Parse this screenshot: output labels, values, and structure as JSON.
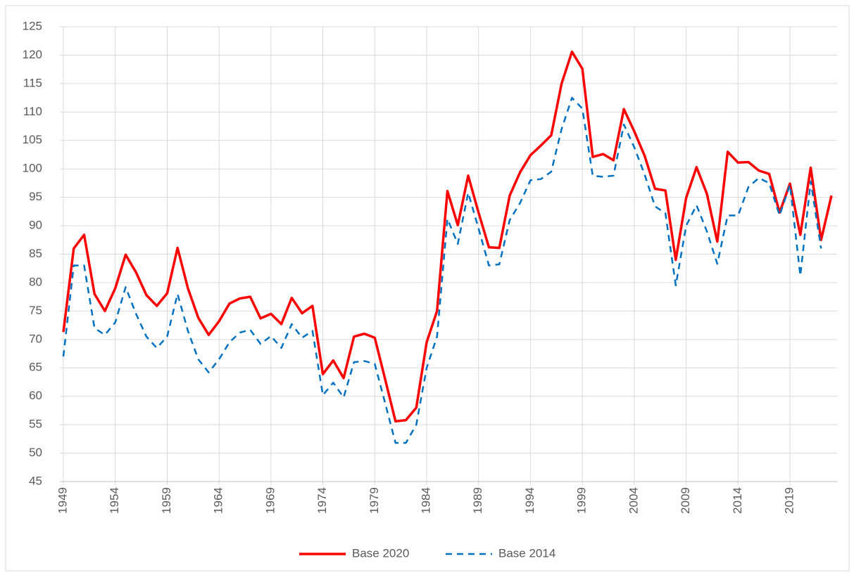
{
  "chart_data": {
    "type": "line",
    "x": [
      1949,
      1950,
      1951,
      1952,
      1953,
      1954,
      1955,
      1956,
      1957,
      1958,
      1959,
      1960,
      1961,
      1962,
      1963,
      1964,
      1965,
      1966,
      1967,
      1968,
      1969,
      1970,
      1971,
      1972,
      1973,
      1974,
      1975,
      1976,
      1977,
      1978,
      1979,
      1980,
      1981,
      1982,
      1983,
      1984,
      1985,
      1986,
      1987,
      1988,
      1989,
      1990,
      1991,
      1992,
      1993,
      1994,
      1995,
      1996,
      1997,
      1998,
      1999,
      2000,
      2001,
      2002,
      2003,
      2004,
      2005,
      2006,
      2007,
      2008,
      2009,
      2010,
      2011,
      2012,
      2013,
      2014,
      2015,
      2016,
      2017,
      2018,
      2019,
      2020,
      2021,
      2022,
      2023
    ],
    "series": [
      {
        "name": "Base 2020",
        "color": "#ff0000",
        "dash": false,
        "values": [
          71.3,
          86,
          88.4,
          78,
          75,
          79,
          84.9,
          81.8,
          77.8,
          75.9,
          78.1,
          86.1,
          79,
          73.8,
          70.8,
          73.2,
          76.3,
          77.2,
          77.5,
          73.7,
          74.5,
          72.7,
          77.3,
          74.6,
          75.9,
          63.9,
          66.3,
          63.2,
          70.5,
          71,
          70.3,
          63,
          55.6,
          55.8,
          58,
          69.5,
          75,
          96.1,
          90.1,
          98.8,
          92.3,
          86.2,
          86.1,
          95.3,
          99.4,
          102.4,
          104.1,
          105.9,
          115,
          120.6,
          117.6,
          102.1,
          102.6,
          101.5,
          110.5,
          106.6,
          102.3,
          96.5,
          96.2,
          84,
          94.9,
          100.3,
          95.6,
          87.2,
          103,
          101.1,
          101.2,
          99.7,
          99.1,
          92.3,
          97.4,
          88.4,
          100.2,
          87.5,
          95.3
        ]
      },
      {
        "name": "Base 2014",
        "color": "#0070c0",
        "dash": true,
        "values": [
          67,
          83,
          83,
          72,
          70.8,
          73,
          79.2,
          74.5,
          70.5,
          68.5,
          70.5,
          78,
          71.5,
          66.5,
          64.2,
          66.5,
          69.5,
          71.2,
          71.7,
          69.2,
          70.6,
          68.5,
          72.7,
          70.3,
          71.5,
          60.2,
          62.4,
          59.8,
          66,
          66.2,
          65.7,
          58.8,
          51.8,
          51.8,
          55,
          65,
          70.5,
          91.2,
          86.8,
          95.8,
          89.5,
          83,
          83.2,
          91,
          94,
          98,
          98.2,
          99.5,
          107,
          112.5,
          110.6,
          98.8,
          98.6,
          98.8,
          107.8,
          103.8,
          99,
          93.4,
          92.2,
          79.5,
          90,
          93.6,
          89,
          83.3,
          91.8,
          91.8,
          96.8,
          98.4,
          97.5,
          91.8,
          97.2,
          81.2,
          97.8,
          86,
          null
        ]
      }
    ],
    "xlim": [
      1949,
      2023
    ],
    "xticks": [
      1949,
      1954,
      1959,
      1964,
      1969,
      1974,
      1979,
      1984,
      1989,
      1994,
      1999,
      2004,
      2009,
      2014,
      2019
    ],
    "ylim": [
      45,
      125
    ],
    "yticks": [
      45,
      50,
      55,
      60,
      65,
      70,
      75,
      80,
      85,
      90,
      95,
      100,
      105,
      110,
      115,
      120,
      125
    ],
    "grid": true,
    "legend": "bottom"
  }
}
